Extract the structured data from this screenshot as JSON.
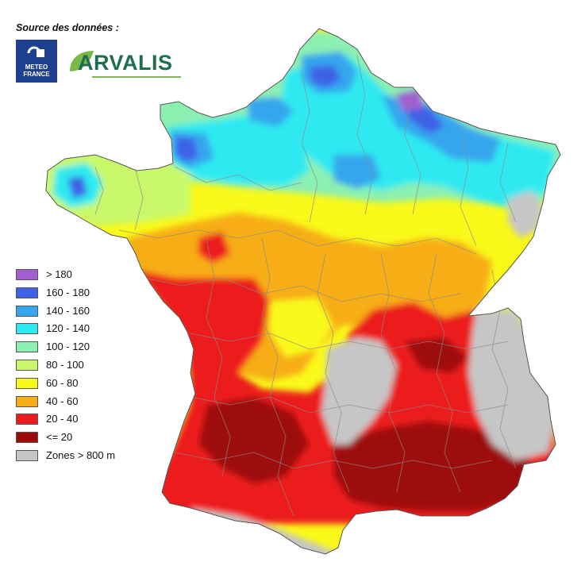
{
  "header": {
    "source_label": "Source des données :"
  },
  "logos": {
    "meteo_france": {
      "line1": "METEO",
      "line2": "FRANCE"
    },
    "arvalis": {
      "text": "ARVALIS"
    }
  },
  "legend": {
    "items": [
      {
        "label": "> 180",
        "color": "#a35fd0"
      },
      {
        "label": "160 - 180",
        "color": "#3d62e6"
      },
      {
        "label": "140 - 160",
        "color": "#36a6ee"
      },
      {
        "label": "120 - 140",
        "color": "#2eeaf0"
      },
      {
        "label": "100 - 120",
        "color": "#8cf0b0"
      },
      {
        "label": "80 - 100",
        "color": "#c9f96a"
      },
      {
        "label": "60 - 80",
        "color": "#f9f91a"
      },
      {
        "label": "40 - 60",
        "color": "#f7ad16"
      },
      {
        "label": "20 - 40",
        "color": "#ed1c1c"
      },
      {
        "label": "<= 20",
        "color": "#9e0a0a"
      },
      {
        "label": "Zones > 800 m",
        "color": "#c6c6c6"
      }
    ]
  }
}
